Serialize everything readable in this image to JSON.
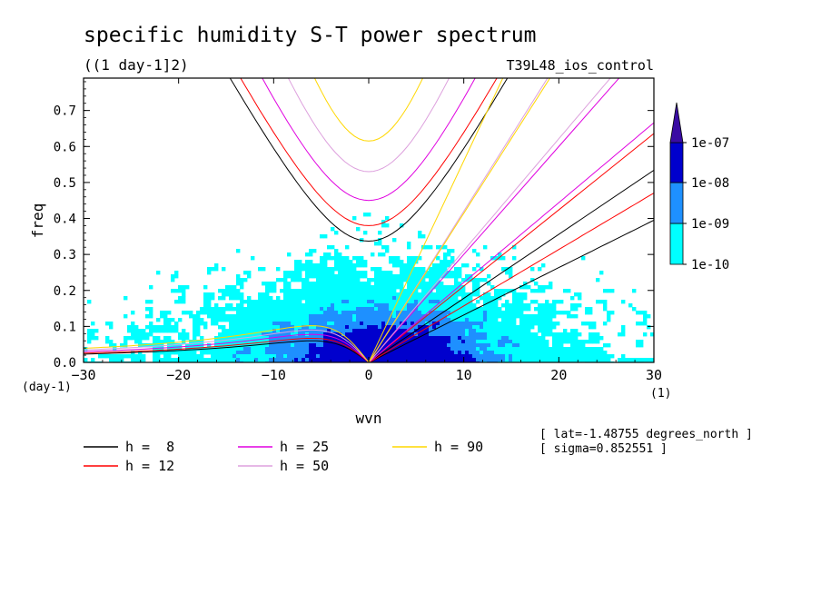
{
  "chart_data": {
    "type": "heatmap",
    "title": "specific humidity S-T power spectrum",
    "subtitle": "((1 day-1]2)",
    "run_label": "T39L48_ios_control",
    "xlabel": "wvn",
    "ylabel": "freq",
    "x_unit": "(1)",
    "y_unit": "(day-1)",
    "xlim": [
      -30,
      30
    ],
    "ylim": [
      0,
      0.79
    ],
    "xticks": [
      -30,
      -20,
      -10,
      0,
      10,
      20,
      30
    ],
    "yticks": [
      0.0,
      0.1,
      0.2,
      0.3,
      0.4,
      0.5,
      0.6,
      0.7
    ],
    "ytick_labels": [
      "0.0",
      "0.1",
      "0.2",
      "0.3",
      "0.4",
      "0.5",
      "0.6",
      "0.7"
    ],
    "colorbar": {
      "levels": [
        "1e-10",
        "1e-09",
        "1e-08",
        "1e-07"
      ],
      "colors": [
        "#00ffff",
        "#1e90ff",
        "#0000cd",
        "#3a0ca3"
      ]
    },
    "dispersion_curves": [
      {
        "name": "h =  8",
        "color": "#000000"
      },
      {
        "name": "h = 12",
        "color": "#ff0000"
      },
      {
        "name": "h = 25",
        "color": "#e000e0"
      },
      {
        "name": "h = 50",
        "color": "#dda0dd"
      },
      {
        "name": "h = 90",
        "color": "#ffd700"
      }
    ],
    "annotations": [
      "[ lat=-1.48755 degrees_north ]",
      "[ sigma=0.852551 ]"
    ]
  }
}
